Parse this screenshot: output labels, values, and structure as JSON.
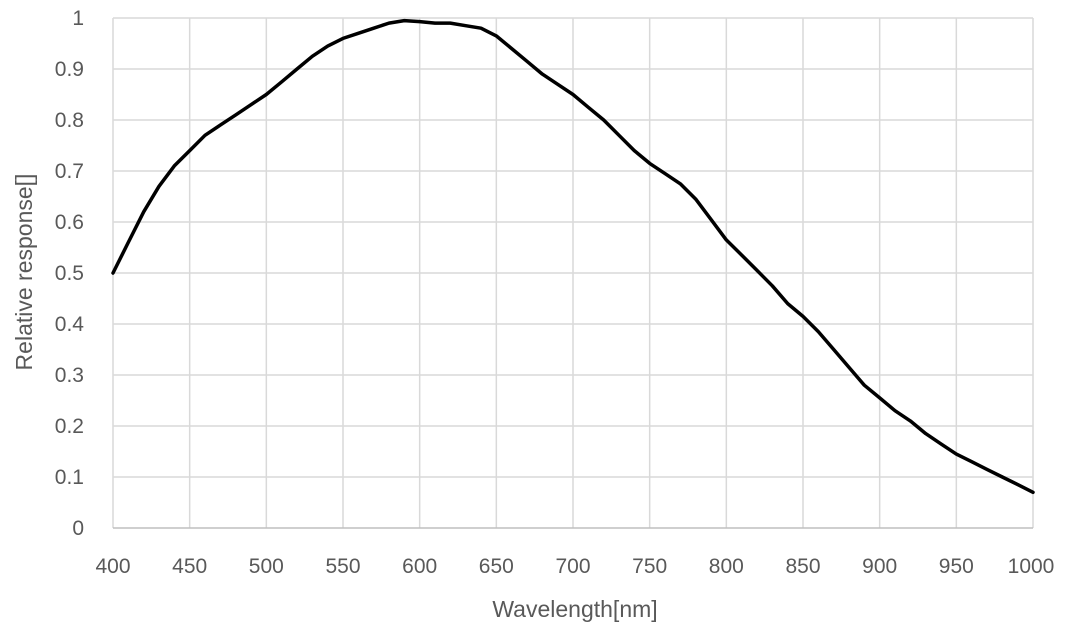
{
  "chart_data": {
    "type": "line",
    "title": "",
    "xlabel": "Wavelength[nm]",
    "ylabel": "Relative response[]",
    "xlim": [
      400,
      1000
    ],
    "ylim": [
      0,
      1
    ],
    "x_ticks": [
      400,
      450,
      500,
      550,
      600,
      650,
      700,
      750,
      800,
      850,
      900,
      950,
      1000
    ],
    "y_ticks": [
      0,
      0.1,
      0.2,
      0.3,
      0.4,
      0.5,
      0.6,
      0.7,
      0.8,
      0.9,
      1
    ],
    "x_tick_labels": [
      "400",
      "450",
      "500",
      "550",
      "600",
      "650",
      "700",
      "750",
      "800",
      "850",
      "900",
      "950",
      "1000"
    ],
    "y_tick_labels": [
      "0",
      "0.1",
      "0.2",
      "0.3",
      "0.4",
      "0.5",
      "0.6",
      "0.7",
      "0.8",
      "0.9",
      "1"
    ],
    "grid": true,
    "legend": "none",
    "series": [
      {
        "color": "#000000",
        "x": [
          400,
          410,
          420,
          430,
          440,
          450,
          460,
          470,
          480,
          490,
          500,
          510,
          520,
          530,
          540,
          550,
          560,
          570,
          580,
          590,
          600,
          610,
          620,
          630,
          640,
          650,
          660,
          670,
          680,
          690,
          700,
          710,
          720,
          730,
          740,
          750,
          760,
          770,
          780,
          790,
          800,
          810,
          820,
          830,
          840,
          850,
          860,
          870,
          880,
          890,
          900,
          910,
          920,
          930,
          940,
          950,
          960,
          970,
          980,
          990,
          1000
        ],
        "y": [
          0.5,
          0.56,
          0.62,
          0.67,
          0.71,
          0.74,
          0.77,
          0.79,
          0.81,
          0.83,
          0.85,
          0.875,
          0.9,
          0.925,
          0.945,
          0.96,
          0.97,
          0.98,
          0.99,
          0.995,
          0.993,
          0.99,
          0.99,
          0.985,
          0.98,
          0.965,
          0.94,
          0.915,
          0.89,
          0.87,
          0.85,
          0.825,
          0.8,
          0.77,
          0.74,
          0.715,
          0.695,
          0.675,
          0.645,
          0.605,
          0.565,
          0.535,
          0.505,
          0.475,
          0.44,
          0.415,
          0.385,
          0.35,
          0.315,
          0.28,
          0.255,
          0.23,
          0.21,
          0.185,
          0.165,
          0.145,
          0.13,
          0.115,
          0.1,
          0.085,
          0.07
        ]
      }
    ]
  }
}
